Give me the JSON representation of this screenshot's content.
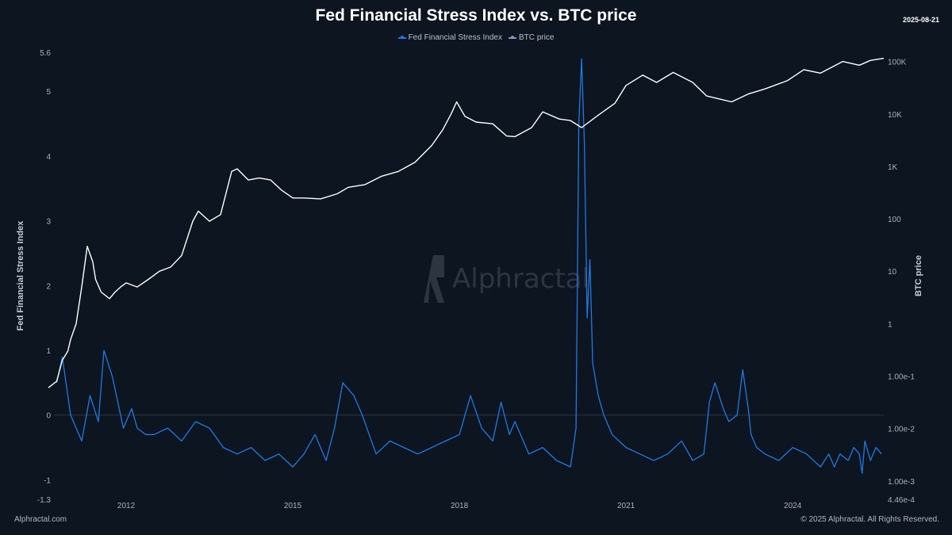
{
  "header": {
    "title": "Fed Financial Stress Index vs. BTC price",
    "date": "2025-08-21"
  },
  "legend": [
    {
      "name": "Fed Financial Stress Index",
      "color": "#1f7ae6"
    },
    {
      "name": "BTC price",
      "color": "#7f95c9"
    }
  ],
  "watermark": {
    "text": "Alphractal"
  },
  "footer": {
    "left": "Alphractal.com",
    "right": "© 2025 Alphractal. All Rights Reserved."
  },
  "chart_data": {
    "type": "line",
    "title": "Fed Financial Stress Index vs. BTC price",
    "xlabel": "",
    "y_left_label": "Fed Financial Stress Index",
    "y_right_label": "BTC price",
    "x_range": [
      2010.7,
      2025.64
    ],
    "x_ticks": [
      2012,
      2015,
      2018,
      2021,
      2024
    ],
    "y_left_range": [
      -1.3,
      5.6
    ],
    "y_left_ticks": [
      {
        "v": -1.3,
        "label": "-1.3"
      },
      {
        "v": -1,
        "label": "-1"
      },
      {
        "v": 0,
        "label": "0"
      },
      {
        "v": 1,
        "label": "1"
      },
      {
        "v": 2,
        "label": "2"
      },
      {
        "v": 3,
        "label": "3"
      },
      {
        "v": 4,
        "label": "4"
      },
      {
        "v": 5,
        "label": "5"
      },
      {
        "v": 5.6,
        "label": "5.6"
      }
    ],
    "y_right_scale": "log",
    "y_right_range": [
      0.000446,
      150000
    ],
    "y_right_ticks": [
      {
        "v": 0.000446,
        "label": "4.46e-4"
      },
      {
        "v": 0.001,
        "label": "1.00e-3"
      },
      {
        "v": 0.01,
        "label": "1.00e-2"
      },
      {
        "v": 0.1,
        "label": "1.00e-1"
      },
      {
        "v": 1,
        "label": "1"
      },
      {
        "v": 10,
        "label": "10"
      },
      {
        "v": 100,
        "label": "100"
      },
      {
        "v": 1000,
        "label": "1K"
      },
      {
        "v": 10000,
        "label": "10K"
      },
      {
        "v": 100000,
        "label": "100K"
      }
    ],
    "grid": false,
    "legend_position": "top-center",
    "series": [
      {
        "name": "Fed Financial Stress Index",
        "axis": "left",
        "color": "#1f7ae6",
        "x": [
          2010.75,
          2010.85,
          2011.0,
          2011.1,
          2011.2,
          2011.35,
          2011.5,
          2011.6,
          2011.75,
          2011.85,
          2011.95,
          2012.0,
          2012.1,
          2012.2,
          2012.35,
          2012.5,
          2012.75,
          2013.0,
          2013.25,
          2013.5,
          2013.75,
          2014.0,
          2014.25,
          2014.5,
          2014.75,
          2015.0,
          2015.2,
          2015.4,
          2015.6,
          2015.75,
          2015.9,
          2016.1,
          2016.25,
          2016.5,
          2016.75,
          2017.0,
          2017.25,
          2017.5,
          2017.75,
          2018.0,
          2018.2,
          2018.4,
          2018.6,
          2018.75,
          2018.9,
          2019.0,
          2019.25,
          2019.5,
          2019.75,
          2020.0,
          2020.1,
          2020.15,
          2020.2,
          2020.25,
          2020.3,
          2020.35,
          2020.4,
          2020.5,
          2020.6,
          2020.75,
          2021.0,
          2021.25,
          2021.5,
          2021.75,
          2022.0,
          2022.2,
          2022.4,
          2022.5,
          2022.6,
          2022.75,
          2022.85,
          2023.0,
          2023.1,
          2023.2,
          2023.25,
          2023.35,
          2023.5,
          2023.75,
          2024.0,
          2024.25,
          2024.5,
          2024.65,
          2024.75,
          2024.85,
          2025.0,
          2025.1,
          2025.2,
          2025.25,
          2025.3,
          2025.4,
          2025.5,
          2025.6
        ],
        "y": [
          0.5,
          0.9,
          0.0,
          -0.2,
          -0.4,
          0.3,
          -0.1,
          1.0,
          0.6,
          0.2,
          -0.2,
          -0.1,
          0.1,
          -0.2,
          -0.3,
          -0.3,
          -0.2,
          -0.4,
          -0.1,
          -0.2,
          -0.5,
          -0.6,
          -0.5,
          -0.7,
          -0.6,
          -0.8,
          -0.6,
          -0.3,
          -0.7,
          -0.2,
          0.5,
          0.3,
          0.0,
          -0.6,
          -0.4,
          -0.5,
          -0.6,
          -0.5,
          -0.4,
          -0.3,
          0.3,
          -0.2,
          -0.4,
          0.2,
          -0.3,
          -0.1,
          -0.6,
          -0.5,
          -0.7,
          -0.8,
          -0.2,
          4.5,
          5.5,
          4.2,
          1.5,
          2.4,
          0.8,
          0.3,
          0.0,
          -0.3,
          -0.5,
          -0.6,
          -0.7,
          -0.6,
          -0.4,
          -0.7,
          -0.6,
          0.2,
          0.5,
          0.1,
          -0.1,
          0.0,
          0.7,
          0.1,
          -0.3,
          -0.5,
          -0.6,
          -0.7,
          -0.5,
          -0.6,
          -0.8,
          -0.6,
          -0.8,
          -0.6,
          -0.7,
          -0.5,
          -0.6,
          -0.9,
          -0.4,
          -0.7,
          -0.5,
          -0.6
        ]
      },
      {
        "name": "BTC price",
        "axis": "right",
        "color": "#ffffff",
        "x": [
          2010.6,
          2010.75,
          2010.85,
          2010.95,
          2011.0,
          2011.1,
          2011.2,
          2011.3,
          2011.4,
          2011.45,
          2011.55,
          2011.7,
          2011.8,
          2011.9,
          2012.0,
          2012.2,
          2012.4,
          2012.6,
          2012.8,
          2013.0,
          2013.2,
          2013.3,
          2013.5,
          2013.7,
          2013.9,
          2014.0,
          2014.2,
          2014.4,
          2014.6,
          2014.8,
          2015.0,
          2015.2,
          2015.5,
          2015.8,
          2016.0,
          2016.3,
          2016.6,
          2016.9,
          2017.2,
          2017.5,
          2017.7,
          2017.85,
          2017.95,
          2018.1,
          2018.3,
          2018.6,
          2018.85,
          2019.0,
          2019.3,
          2019.5,
          2019.8,
          2020.0,
          2020.2,
          2020.5,
          2020.8,
          2021.0,
          2021.3,
          2021.55,
          2021.85,
          2022.2,
          2022.45,
          2022.9,
          2023.2,
          2023.5,
          2023.9,
          2024.2,
          2024.5,
          2024.9,
          2025.2,
          2025.4,
          2025.64
        ],
        "y": [
          0.06,
          0.08,
          0.2,
          0.3,
          0.5,
          1.0,
          5.0,
          30.0,
          15.0,
          7.0,
          4.0,
          3.0,
          4.0,
          5.0,
          6.0,
          5.0,
          7.0,
          10.0,
          12.0,
          20.0,
          90.0,
          140.0,
          90.0,
          120.0,
          800.0,
          900.0,
          550.0,
          600.0,
          550.0,
          350.0,
          250.0,
          250.0,
          240.0,
          300.0,
          400.0,
          450.0,
          650.0,
          800.0,
          1200.0,
          2500.0,
          5000.0,
          10000.0,
          17000.0,
          9000.0,
          7000.0,
          6500.0,
          3800.0,
          3700.0,
          5500.0,
          11000.0,
          8000.0,
          7500.0,
          5500.0,
          9500.0,
          16000.0,
          35000.0,
          55000.0,
          40000.0,
          62000.0,
          40000.0,
          22000.0,
          17000.0,
          24000.0,
          30000.0,
          43000.0,
          70000.0,
          60000.0,
          100000.0,
          85000.0,
          105000.0,
          115000.0
        ]
      }
    ]
  }
}
